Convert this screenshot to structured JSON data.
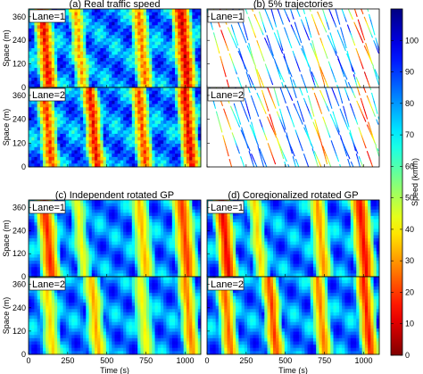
{
  "chart_data": {
    "type": "heatmap",
    "colorbar": {
      "label": "Speed (km/h)",
      "ticks": [
        0,
        10,
        20,
        30,
        40,
        50,
        60,
        70,
        80,
        90,
        100
      ],
      "range": [
        0,
        110
      ],
      "colormap": "jet_reversed"
    },
    "x_ticks": [
      0,
      250,
      500,
      750,
      1000
    ],
    "x_range": [
      0,
      1100
    ],
    "xlabel": "Time (s)",
    "y_ticks": [
      0,
      120,
      240,
      360
    ],
    "y_range": [
      0,
      400
    ],
    "ylabel": "Space (m)",
    "panels": [
      {
        "title": "(a) Real traffic speed",
        "mode": "dense",
        "lanes": [
          {
            "label": "Lane=1",
            "low_speed_bands": [
              {
                "t0": 20,
                "t1": 150,
                "speed": 12
              },
              {
                "t0": 250,
                "t1": 350,
                "speed": 30
              },
              {
                "t0": 640,
                "t1": 760,
                "speed": 25
              },
              {
                "t0": 900,
                "t1": 1040,
                "speed": 8
              }
            ]
          },
          {
            "label": "Lane=2",
            "low_speed_bands": [
              {
                "t0": 40,
                "t1": 160,
                "speed": 18
              },
              {
                "t0": 330,
                "t1": 450,
                "speed": 12
              },
              {
                "t0": 640,
                "t1": 760,
                "speed": 20
              },
              {
                "t0": 930,
                "t1": 1060,
                "speed": 10
              }
            ]
          }
        ]
      },
      {
        "title": "(b) 5% trajectories",
        "mode": "sparse",
        "lanes": [
          {
            "label": "Lane=1",
            "low_speed_bands": [
              {
                "t0": 20,
                "t1": 150,
                "speed": 12
              },
              {
                "t0": 250,
                "t1": 350,
                "speed": 30
              },
              {
                "t0": 640,
                "t1": 760,
                "speed": 25
              },
              {
                "t0": 900,
                "t1": 1040,
                "speed": 8
              }
            ]
          },
          {
            "label": "Lane=2",
            "low_speed_bands": [
              {
                "t0": 40,
                "t1": 160,
                "speed": 18
              },
              {
                "t0": 330,
                "t1": 450,
                "speed": 12
              },
              {
                "t0": 640,
                "t1": 760,
                "speed": 20
              },
              {
                "t0": 930,
                "t1": 1060,
                "speed": 10
              }
            ]
          }
        ]
      },
      {
        "title": "(c) Independent rotated GP",
        "mode": "smooth",
        "lanes": [
          {
            "label": "Lane=1",
            "low_speed_bands": [
              {
                "t0": 30,
                "t1": 170,
                "speed": 15
              },
              {
                "t0": 260,
                "t1": 360,
                "speed": 40
              },
              {
                "t0": 640,
                "t1": 770,
                "speed": 32
              },
              {
                "t0": 900,
                "t1": 1050,
                "speed": 18
              }
            ]
          },
          {
            "label": "Lane=2",
            "low_speed_bands": [
              {
                "t0": 50,
                "t1": 170,
                "speed": 35
              },
              {
                "t0": 340,
                "t1": 460,
                "speed": 30
              },
              {
                "t0": 650,
                "t1": 770,
                "speed": 40
              },
              {
                "t0": 940,
                "t1": 1060,
                "speed": 25
              }
            ]
          }
        ]
      },
      {
        "title": "(d) Coregionalized rotated GP",
        "mode": "smooth",
        "lanes": [
          {
            "label": "Lane=1",
            "low_speed_bands": [
              {
                "t0": 25,
                "t1": 160,
                "speed": 10
              },
              {
                "t0": 250,
                "t1": 355,
                "speed": 35
              },
              {
                "t0": 640,
                "t1": 765,
                "speed": 28
              },
              {
                "t0": 900,
                "t1": 1045,
                "speed": 12
              }
            ]
          },
          {
            "label": "Lane=2",
            "low_speed_bands": [
              {
                "t0": 45,
                "t1": 165,
                "speed": 22
              },
              {
                "t0": 335,
                "t1": 455,
                "speed": 18
              },
              {
                "t0": 645,
                "t1": 765,
                "speed": 25
              },
              {
                "t0": 935,
                "t1": 1060,
                "speed": 14
              }
            ]
          }
        ]
      }
    ]
  }
}
